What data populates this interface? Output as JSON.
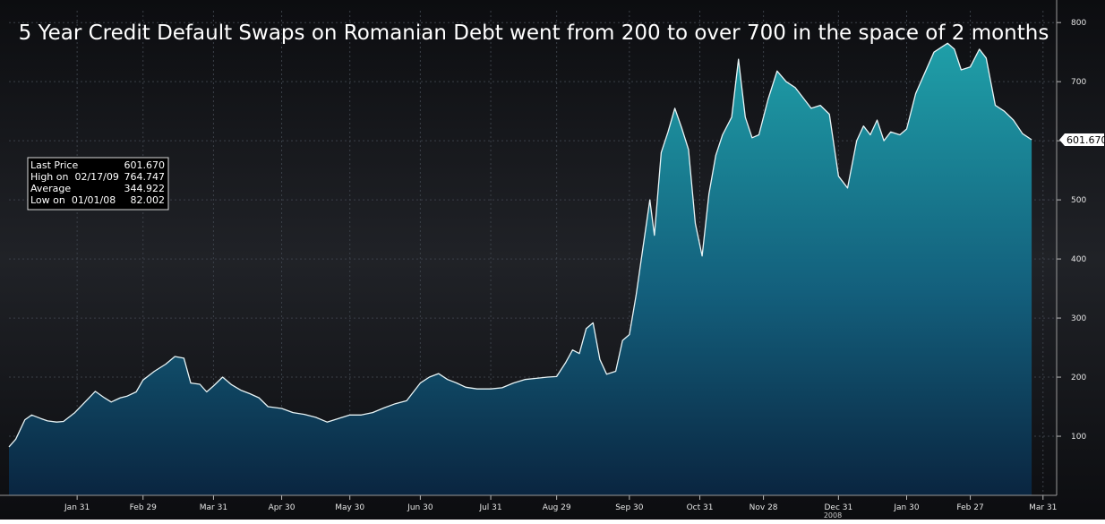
{
  "chart_data": {
    "type": "area",
    "title": "5 Year Credit Default Swaps on Romanian Debt went from 200 to over 700 in the space of 2 months",
    "xlabel": "",
    "ylabel": "",
    "ylim": [
      0,
      820
    ],
    "xlim": [
      "2008-01-01",
      "2009-04-06"
    ],
    "y_ticks": [
      100,
      200,
      300,
      400,
      500,
      600,
      700,
      800
    ],
    "x_ticks": [
      {
        "label": "Jan 31",
        "date": "2008-01-31"
      },
      {
        "label": "Feb 29",
        "date": "2008-02-29"
      },
      {
        "label": "Mar 31",
        "date": "2008-03-31"
      },
      {
        "label": "Apr 30",
        "date": "2008-04-30"
      },
      {
        "label": "May 30",
        "date": "2008-05-30"
      },
      {
        "label": "Jun 30",
        "date": "2008-06-30"
      },
      {
        "label": "Jul 31",
        "date": "2008-07-31"
      },
      {
        "label": "Aug 29",
        "date": "2008-08-29"
      },
      {
        "label": "Sep 30",
        "date": "2008-09-30"
      },
      {
        "label": "Oct 31",
        "date": "2008-10-31"
      },
      {
        "label": "Nov 28",
        "date": "2008-11-28"
      },
      {
        "label": "Dec 31",
        "date": "2008-12-31"
      },
      {
        "label": "Jan 30",
        "date": "2009-01-30"
      },
      {
        "label": "Feb 27",
        "date": "2009-02-27"
      },
      {
        "label": "Mar 31",
        "date": "2009-03-31"
      }
    ],
    "year_label": "2008",
    "grid": true,
    "series": [
      {
        "values": [
          [
            "2008-01-01",
            82
          ],
          [
            "2008-01-04",
            95
          ],
          [
            "2008-01-08",
            128
          ],
          [
            "2008-01-11",
            136
          ],
          [
            "2008-01-15",
            130
          ],
          [
            "2008-01-18",
            126
          ],
          [
            "2008-01-22",
            124
          ],
          [
            "2008-01-25",
            125
          ],
          [
            "2008-01-30",
            140
          ],
          [
            "2008-02-04",
            160
          ],
          [
            "2008-02-08",
            176
          ],
          [
            "2008-02-12",
            165
          ],
          [
            "2008-02-15",
            158
          ],
          [
            "2008-02-19",
            165
          ],
          [
            "2008-02-22",
            168
          ],
          [
            "2008-02-26",
            175
          ],
          [
            "2008-02-29",
            195
          ],
          [
            "2008-03-05",
            210
          ],
          [
            "2008-03-10",
            222
          ],
          [
            "2008-03-14",
            235
          ],
          [
            "2008-03-18",
            232
          ],
          [
            "2008-03-21",
            190
          ],
          [
            "2008-03-25",
            188
          ],
          [
            "2008-03-28",
            175
          ],
          [
            "2008-03-31",
            185
          ],
          [
            "2008-04-04",
            200
          ],
          [
            "2008-04-08",
            187
          ],
          [
            "2008-04-12",
            178
          ],
          [
            "2008-04-16",
            172
          ],
          [
            "2008-04-20",
            165
          ],
          [
            "2008-04-24",
            150
          ],
          [
            "2008-04-30",
            147
          ],
          [
            "2008-05-05",
            140
          ],
          [
            "2008-05-10",
            137
          ],
          [
            "2008-05-15",
            132
          ],
          [
            "2008-05-20",
            124
          ],
          [
            "2008-05-25",
            130
          ],
          [
            "2008-05-30",
            136
          ],
          [
            "2008-06-04",
            136
          ],
          [
            "2008-06-09",
            140
          ],
          [
            "2008-06-14",
            148
          ],
          [
            "2008-06-19",
            155
          ],
          [
            "2008-06-24",
            160
          ],
          [
            "2008-06-30",
            190
          ],
          [
            "2008-07-04",
            200
          ],
          [
            "2008-07-08",
            206
          ],
          [
            "2008-07-12",
            196
          ],
          [
            "2008-07-16",
            190
          ],
          [
            "2008-07-20",
            183
          ],
          [
            "2008-07-25",
            180
          ],
          [
            "2008-07-31",
            180
          ],
          [
            "2008-08-05",
            182
          ],
          [
            "2008-08-10",
            190
          ],
          [
            "2008-08-15",
            196
          ],
          [
            "2008-08-20",
            198
          ],
          [
            "2008-08-25",
            200
          ],
          [
            "2008-08-29",
            201
          ],
          [
            "2008-09-02",
            225
          ],
          [
            "2008-09-05",
            246
          ],
          [
            "2008-09-08",
            240
          ],
          [
            "2008-09-11",
            282
          ],
          [
            "2008-09-14",
            292
          ],
          [
            "2008-09-17",
            230
          ],
          [
            "2008-09-20",
            205
          ],
          [
            "2008-09-24",
            210
          ],
          [
            "2008-09-27",
            262
          ],
          [
            "2008-09-30",
            272
          ],
          [
            "2008-10-03",
            340
          ],
          [
            "2008-10-06",
            420
          ],
          [
            "2008-10-09",
            500
          ],
          [
            "2008-10-11",
            440
          ],
          [
            "2008-10-14",
            580
          ],
          [
            "2008-10-17",
            615
          ],
          [
            "2008-10-20",
            655
          ],
          [
            "2008-10-23",
            622
          ],
          [
            "2008-10-26",
            585
          ],
          [
            "2008-10-29",
            460
          ],
          [
            "2008-11-01",
            405
          ],
          [
            "2008-11-04",
            510
          ],
          [
            "2008-11-07",
            575
          ],
          [
            "2008-11-10",
            610
          ],
          [
            "2008-11-14",
            640
          ],
          [
            "2008-11-17",
            738
          ],
          [
            "2008-11-20",
            640
          ],
          [
            "2008-11-23",
            605
          ],
          [
            "2008-11-26",
            610
          ],
          [
            "2008-11-30",
            670
          ],
          [
            "2008-12-04",
            718
          ],
          [
            "2008-12-08",
            700
          ],
          [
            "2008-12-12",
            690
          ],
          [
            "2008-12-16",
            670
          ],
          [
            "2008-12-19",
            655
          ],
          [
            "2008-12-23",
            660
          ],
          [
            "2008-12-27",
            645
          ],
          [
            "2008-12-31",
            540
          ],
          [
            "2009-01-04",
            520
          ],
          [
            "2009-01-08",
            600
          ],
          [
            "2009-01-11",
            625
          ],
          [
            "2009-01-14",
            610
          ],
          [
            "2009-01-17",
            635
          ],
          [
            "2009-01-20",
            600
          ],
          [
            "2009-01-23",
            615
          ],
          [
            "2009-01-27",
            610
          ],
          [
            "2009-01-30",
            620
          ],
          [
            "2009-02-03",
            680
          ],
          [
            "2009-02-07",
            715
          ],
          [
            "2009-02-11",
            750
          ],
          [
            "2009-02-15",
            760
          ],
          [
            "2009-02-17",
            765
          ],
          [
            "2009-02-20",
            755
          ],
          [
            "2009-02-23",
            720
          ],
          [
            "2009-02-27",
            725
          ],
          [
            "2009-03-03",
            755
          ],
          [
            "2009-03-06",
            740
          ],
          [
            "2009-03-10",
            660
          ],
          [
            "2009-03-14",
            650
          ],
          [
            "2009-03-18",
            635
          ],
          [
            "2009-03-22",
            612
          ],
          [
            "2009-03-26",
            601.67
          ]
        ]
      }
    ],
    "last_value_label": "601.670",
    "stats_box": [
      {
        "label": "Last Price",
        "value": "601.670"
      },
      {
        "label": "High on  02/17/09",
        "value": "764.747"
      },
      {
        "label": "Average",
        "value": "344.922"
      },
      {
        "label": "Low on  01/01/08",
        "value": "82.002"
      }
    ],
    "colors": {
      "background": "#0f1013",
      "background_band": "#1a1c21",
      "area_top": "#1f9fa8",
      "area_bottom": "#0a2540",
      "line": "#e8f4f6",
      "grid": "#3b4048",
      "axis_text": "#e6e6e6",
      "title": "#ffffff"
    }
  }
}
